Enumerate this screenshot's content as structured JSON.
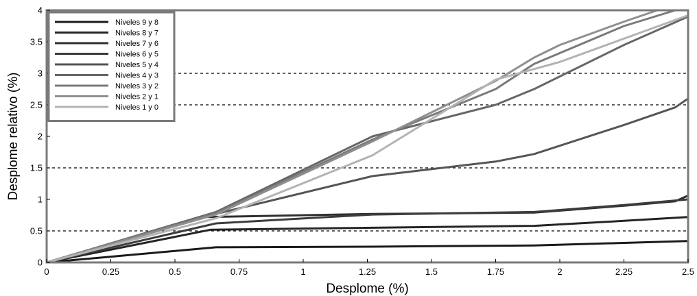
{
  "chart_data": {
    "type": "line",
    "xlabel": "Desplome (%)",
    "ylabel": "Desplome relativo (%)",
    "xlim": [
      0,
      2.5
    ],
    "ylim": [
      0,
      4
    ],
    "x_ticks": [
      "0",
      "0.25",
      "0.5",
      "0.75",
      "1",
      "1.25",
      "1.5",
      "1.75",
      "2",
      "2.25",
      "2.5"
    ],
    "y_ticks": [
      "0",
      "0.5",
      "1",
      "1.5",
      "2",
      "2.5",
      "3",
      "3.5",
      "4"
    ],
    "reference_lines": [
      0.5,
      1.5,
      2.5,
      3.0
    ],
    "grid": false,
    "legend_position": "top-left",
    "series": [
      {
        "name": "Niveles 9 y 8",
        "color": "#1a1a1a",
        "points": [
          [
            0,
            0
          ],
          [
            0.66,
            0.24
          ],
          [
            1.27,
            0.25
          ],
          [
            1.9,
            0.27
          ],
          [
            2.25,
            0.31
          ],
          [
            2.5,
            0.34
          ]
        ]
      },
      {
        "name": "Niveles 8 y 7",
        "color": "#242424",
        "points": [
          [
            0,
            0
          ],
          [
            0.64,
            0.52
          ],
          [
            1.27,
            0.55
          ],
          [
            1.9,
            0.58
          ],
          [
            2.25,
            0.66
          ],
          [
            2.5,
            0.72
          ]
        ]
      },
      {
        "name": "Niveles 7 y 6",
        "color": "#2e2e2e",
        "points": [
          [
            0,
            0
          ],
          [
            0.62,
            0.72
          ],
          [
            1.27,
            0.77
          ],
          [
            1.9,
            0.79
          ],
          [
            2.25,
            0.9
          ],
          [
            2.45,
            0.97
          ],
          [
            2.5,
            1.06
          ]
        ]
      },
      {
        "name": "Niveles 6 y 5",
        "color": "#3c3c3c",
        "points": [
          [
            0,
            0
          ],
          [
            0.66,
            0.62
          ],
          [
            1.27,
            0.76
          ],
          [
            1.9,
            0.8
          ],
          [
            2.25,
            0.91
          ],
          [
            2.5,
            1.0
          ]
        ]
      },
      {
        "name": "Niveles 5 y 4",
        "color": "#555555",
        "points": [
          [
            0,
            0
          ],
          [
            0.66,
            0.77
          ],
          [
            1.27,
            1.37
          ],
          [
            1.75,
            1.6
          ],
          [
            1.9,
            1.72
          ],
          [
            2.25,
            2.18
          ],
          [
            2.45,
            2.46
          ],
          [
            2.5,
            2.6
          ]
        ]
      },
      {
        "name": "Niveles 4 y 3",
        "color": "#676767",
        "points": [
          [
            0,
            0
          ],
          [
            0.66,
            0.8
          ],
          [
            1.27,
            2.0
          ],
          [
            1.75,
            2.5
          ],
          [
            1.9,
            2.75
          ],
          [
            2.25,
            3.45
          ],
          [
            2.5,
            3.9
          ]
        ]
      },
      {
        "name": "Niveles 3 y 2",
        "color": "#7a7a7a",
        "points": [
          [
            0,
            0
          ],
          [
            0.66,
            0.78
          ],
          [
            1.27,
            1.95
          ],
          [
            1.75,
            2.75
          ],
          [
            1.9,
            3.15
          ],
          [
            2.25,
            3.75
          ],
          [
            2.45,
            4.0
          ]
        ]
      },
      {
        "name": "Niveles 2 y 1",
        "color": "#8f8f8f",
        "points": [
          [
            0,
            0
          ],
          [
            0.66,
            0.76
          ],
          [
            1.27,
            1.92
          ],
          [
            1.75,
            2.88
          ],
          [
            1.9,
            3.25
          ],
          [
            2.0,
            3.45
          ],
          [
            2.25,
            3.82
          ],
          [
            2.38,
            4.0
          ]
        ]
      },
      {
        "name": "Niveles 1 y 0",
        "color": "#b3b3b3",
        "points": [
          [
            0,
            0
          ],
          [
            0.66,
            0.7
          ],
          [
            1.27,
            1.7
          ],
          [
            1.75,
            2.9
          ],
          [
            2.0,
            3.18
          ],
          [
            2.25,
            3.55
          ],
          [
            2.5,
            3.92
          ]
        ]
      }
    ]
  }
}
